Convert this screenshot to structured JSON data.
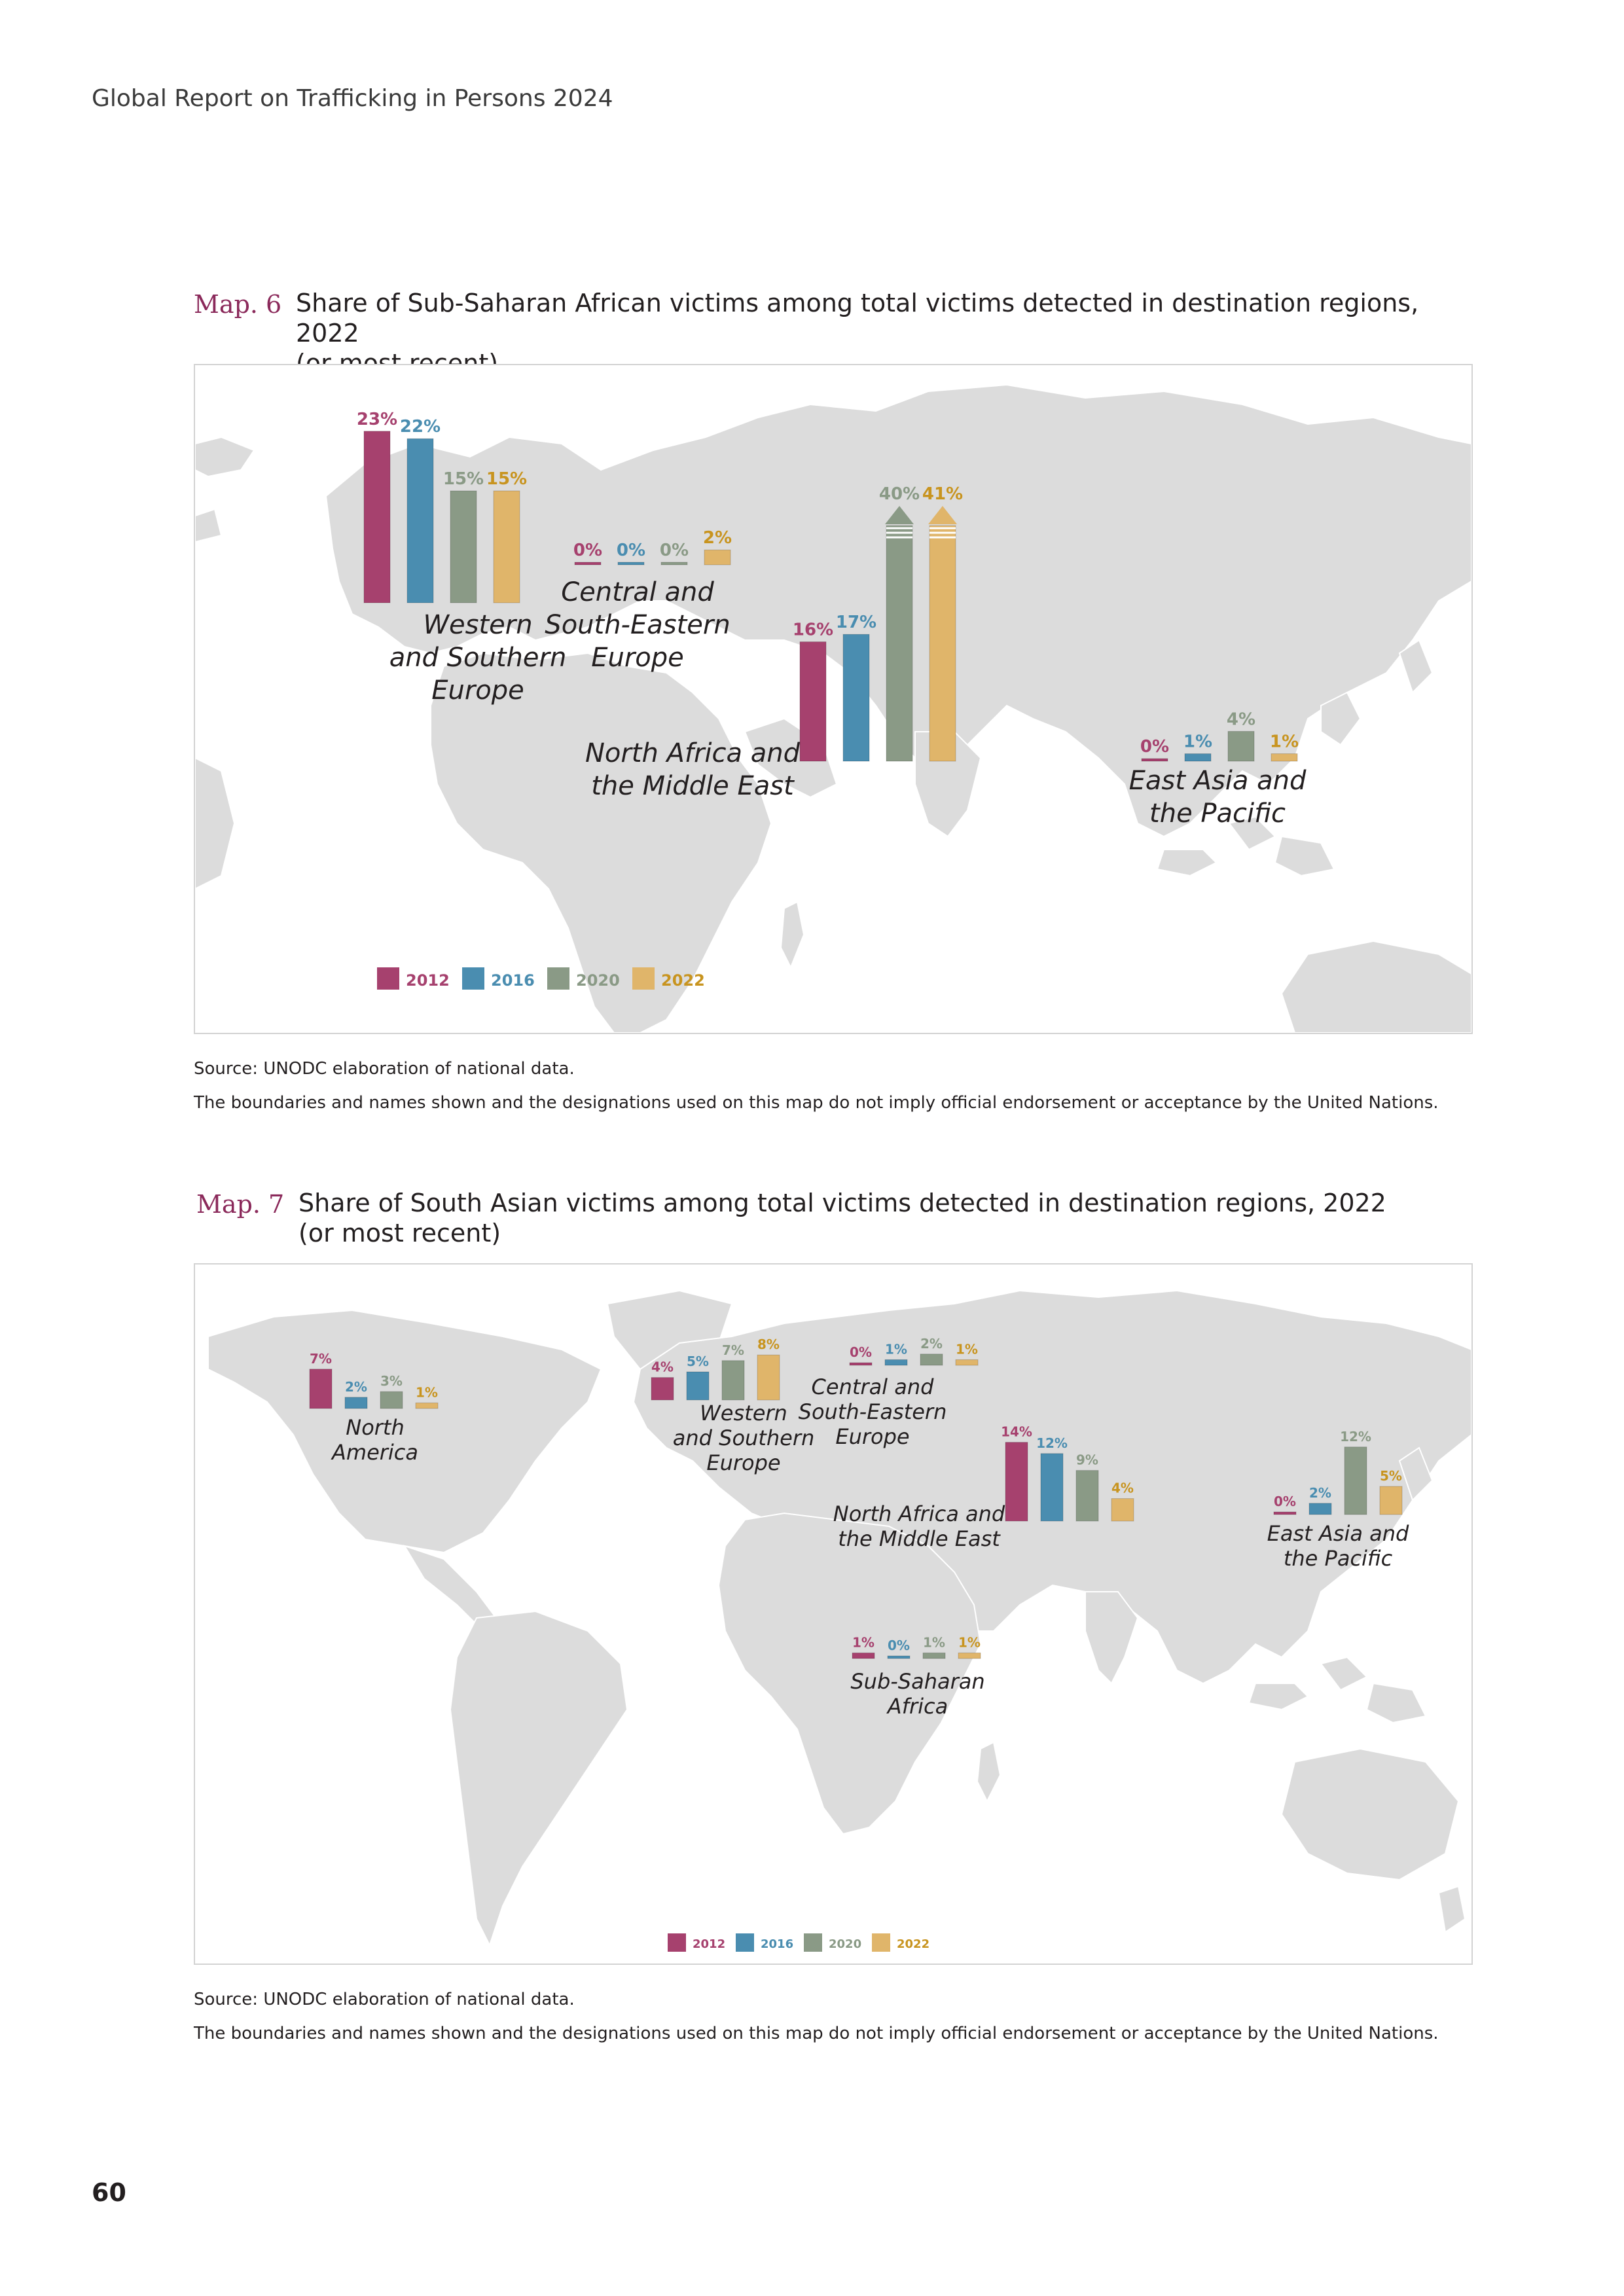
{
  "header": {
    "title": "Global Report on Trafficking in Persons 2024"
  },
  "page_number": "60",
  "colors": {
    "y2012": "#a6416e",
    "y2016": "#4a8db0",
    "y2020": "#8a9a86",
    "y2022": "#e0b56a",
    "land": "#dcdcdc",
    "map_label": "#8b2a5b"
  },
  "map6": {
    "label": "Map. 6",
    "title_line1": "Share of Sub-Saharan African victims among total victims detected in destination regions, 2022",
    "title_line2": "(or most recent)",
    "source": "Source: UNODC elaboration of national data.",
    "disclaimer": "The boundaries and names shown and the designations used on this map do not imply official endorsement or acceptance by the United Nations."
  },
  "map7": {
    "label": "Map. 7",
    "title_line1": "Share of South Asian victims among total victims detected in destination regions, 2022",
    "title_line2": "(or most recent)",
    "source": "Source: UNODC elaboration of national data.",
    "disclaimer": "The boundaries and names shown and the designations used on this map do not imply official endorsement or acceptance by the United Nations."
  },
  "chart_data": [
    {
      "type": "bar",
      "series_years": [
        "2012",
        "2016",
        "2020",
        "2022"
      ],
      "regions": [
        {
          "name_lines": [
            "Western",
            "and Southern",
            "Europe"
          ],
          "values": [
            23,
            22,
            15,
            15
          ],
          "labels": [
            "23%",
            "22%",
            "15%",
            "15%"
          ],
          "truncated": [
            false,
            false,
            false,
            false
          ]
        },
        {
          "name_lines": [
            "Central and",
            "South-Eastern",
            "Europe"
          ],
          "values": [
            0,
            0,
            0,
            2
          ],
          "labels": [
            "0%",
            "0%",
            "0%",
            "2%"
          ],
          "truncated": [
            false,
            false,
            false,
            false
          ]
        },
        {
          "name_lines": [
            "North Africa and",
            "the Middle East"
          ],
          "values": [
            16,
            17,
            40,
            41
          ],
          "labels": [
            "16%",
            "17%",
            "40%",
            "41%"
          ],
          "truncated": [
            false,
            false,
            true,
            true
          ]
        },
        {
          "name_lines": [
            "East Asia and",
            "the Pacific"
          ],
          "values": [
            0,
            1,
            4,
            1
          ],
          "labels": [
            "0%",
            "1%",
            "4%",
            "1%"
          ],
          "truncated": [
            false,
            false,
            false,
            false
          ]
        }
      ]
    },
    {
      "type": "bar",
      "series_years": [
        "2012",
        "2016",
        "2020",
        "2022"
      ],
      "regions": [
        {
          "name_lines": [
            "North",
            "America"
          ],
          "values": [
            7,
            2,
            3,
            1
          ],
          "labels": [
            "7%",
            "2%",
            "3%",
            "1%"
          ]
        },
        {
          "name_lines": [
            "Western",
            "and Southern",
            "Europe"
          ],
          "values": [
            4,
            5,
            7,
            8
          ],
          "labels": [
            "4%",
            "5%",
            "7%",
            "8%"
          ]
        },
        {
          "name_lines": [
            "Central and",
            "South-Eastern",
            "Europe"
          ],
          "values": [
            0,
            1,
            2,
            1
          ],
          "labels": [
            "0%",
            "1%",
            "2%",
            "1%"
          ]
        },
        {
          "name_lines": [
            "North Africa and",
            "the Middle East"
          ],
          "values": [
            14,
            12,
            9,
            4
          ],
          "labels": [
            "14%",
            "12%",
            "9%",
            "4%"
          ]
        },
        {
          "name_lines": [
            "East Asia and",
            "the Pacific"
          ],
          "values": [
            0,
            2,
            12,
            5
          ],
          "labels": [
            "0%",
            "2%",
            "12%",
            "5%"
          ]
        },
        {
          "name_lines": [
            "Sub-Saharan",
            "Africa"
          ],
          "values": [
            1,
            0,
            1,
            1
          ],
          "labels": [
            "1%",
            "0%",
            "1%",
            "1%"
          ]
        }
      ]
    }
  ]
}
